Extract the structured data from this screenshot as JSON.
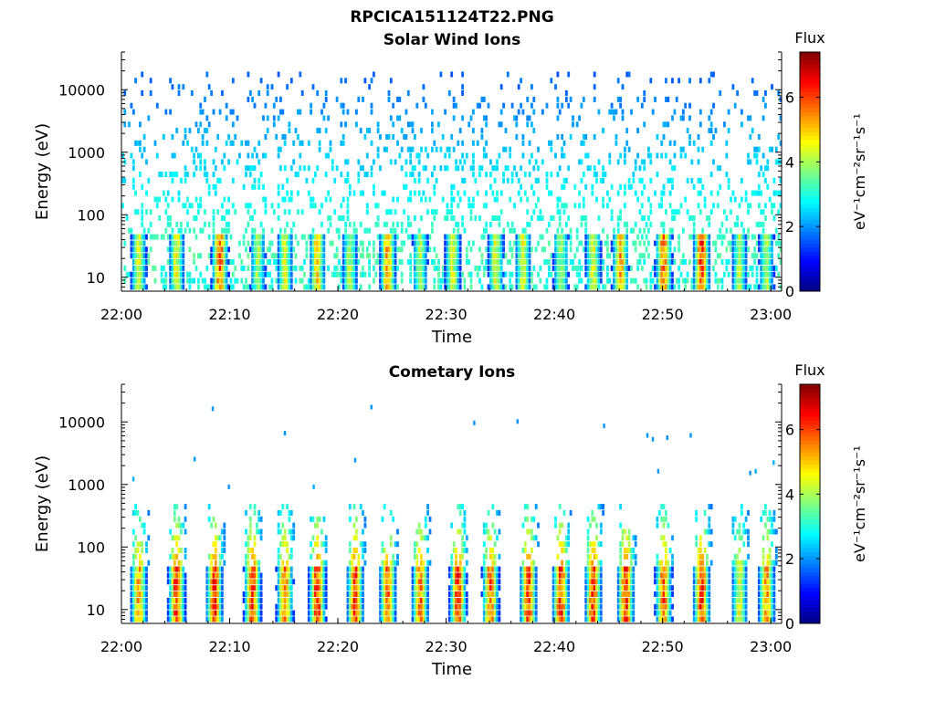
{
  "figure": {
    "title": "RPCICA151124T22.PNG"
  },
  "colorbar": {
    "title": "Flux",
    "label": "eV⁻¹cm⁻²sr⁻¹s⁻¹",
    "ticks": [
      "0",
      "2",
      "4",
      "6"
    ],
    "range": [
      0,
      7.4
    ],
    "colormap": "jet"
  },
  "chart_data": [
    {
      "type": "heatmap",
      "title": "Solar Wind Ions",
      "xlabel": "Time",
      "ylabel": "Energy (eV)",
      "x_ticks": [
        "22:00",
        "22:10",
        "22:20",
        "22:30",
        "22:40",
        "22:50",
        "23:00"
      ],
      "y_ticks": [
        "10",
        "100",
        "1000",
        "10000"
      ],
      "y_scale": "log",
      "xlim": [
        "22:00",
        "23:01"
      ],
      "ylim": [
        6,
        40000
      ],
      "time_step_s": 12,
      "bursts": [
        {
          "time": "22:01:30",
          "flux": 5.0
        },
        {
          "time": "22:05:00",
          "flux": 5.0
        },
        {
          "time": "22:09:00",
          "flux": 6.5
        },
        {
          "time": "22:12:30",
          "flux": 4.5
        },
        {
          "time": "22:15:00",
          "flux": 5.0
        },
        {
          "time": "22:18:00",
          "flux": 5.5
        },
        {
          "time": "22:21:00",
          "flux": 4.5
        },
        {
          "time": "22:24:30",
          "flux": 6.0
        },
        {
          "time": "22:27:30",
          "flux": 4.5
        },
        {
          "time": "22:30:30",
          "flux": 5.0
        },
        {
          "time": "22:34:30",
          "flux": 5.0
        },
        {
          "time": "22:37:00",
          "flux": 5.0
        },
        {
          "time": "22:40:30",
          "flux": 4.5
        },
        {
          "time": "22:43:30",
          "flux": 5.0
        },
        {
          "time": "22:46:00",
          "flux": 6.0
        },
        {
          "time": "22:50:00",
          "flux": 6.5
        },
        {
          "time": "22:53:30",
          "flux": 7.0
        },
        {
          "time": "22:57:00",
          "flux": 4.5
        },
        {
          "time": "22:59:30",
          "flux": 4.5
        }
      ],
      "background": {
        "energy_min": 20,
        "energy_max": 20000,
        "flux_min": 1.6,
        "flux_max": 3.4
      }
    },
    {
      "type": "heatmap",
      "title": "Cometary Ions",
      "xlabel": "Time",
      "ylabel": "Energy (eV)",
      "x_ticks": [
        "22:00",
        "22:10",
        "22:20",
        "22:30",
        "22:40",
        "22:50",
        "23:00"
      ],
      "y_ticks": [
        "10",
        "100",
        "1000",
        "10000"
      ],
      "y_scale": "log",
      "xlim": [
        "22:00",
        "23:01"
      ],
      "ylim": [
        6,
        40000
      ],
      "time_step_s": 12,
      "bursts": [
        {
          "time": "22:01:30",
          "flux": 6.0
        },
        {
          "time": "22:05:00",
          "flux": 7.0
        },
        {
          "time": "22:08:30",
          "flux": 7.0
        },
        {
          "time": "22:12:00",
          "flux": 7.0
        },
        {
          "time": "22:15:00",
          "flux": 6.5
        },
        {
          "time": "22:18:00",
          "flux": 7.0
        },
        {
          "time": "22:21:30",
          "flux": 7.0
        },
        {
          "time": "22:24:30",
          "flux": 6.5
        },
        {
          "time": "22:27:30",
          "flux": 6.5
        },
        {
          "time": "22:31:00",
          "flux": 7.0
        },
        {
          "time": "22:34:00",
          "flux": 6.5
        },
        {
          "time": "22:37:30",
          "flux": 7.0
        },
        {
          "time": "22:40:30",
          "flux": 7.0
        },
        {
          "time": "22:43:30",
          "flux": 7.0
        },
        {
          "time": "22:46:30",
          "flux": 7.0
        },
        {
          "time": "22:50:00",
          "flux": 6.5
        },
        {
          "time": "22:53:30",
          "flux": 7.0
        },
        {
          "time": "22:57:00",
          "flux": 5.0
        },
        {
          "time": "22:59:30",
          "flux": 6.0
        }
      ],
      "sparse_points": [
        {
          "time": "22:01:00",
          "energy": 1200,
          "flux": 2.2
        },
        {
          "time": "22:06:40",
          "energy": 2500,
          "flux": 2.0
        },
        {
          "time": "22:08:20",
          "energy": 16000,
          "flux": 2.0
        },
        {
          "time": "22:09:50",
          "energy": 900,
          "flux": 2.0
        },
        {
          "time": "22:15:00",
          "energy": 6500,
          "flux": 2.0
        },
        {
          "time": "22:17:40",
          "energy": 900,
          "flux": 2.2
        },
        {
          "time": "22:21:30",
          "energy": 2400,
          "flux": 2.0
        },
        {
          "time": "22:23:00",
          "energy": 17000,
          "flux": 2.0
        },
        {
          "time": "22:32:30",
          "energy": 9500,
          "flux": 2.0
        },
        {
          "time": "22:36:30",
          "energy": 10000,
          "flux": 2.0
        },
        {
          "time": "22:44:30",
          "energy": 8500,
          "flux": 2.0
        },
        {
          "time": "22:48:30",
          "energy": 6000,
          "flux": 2.0
        },
        {
          "time": "22:49:00",
          "energy": 5200,
          "flux": 2.0
        },
        {
          "time": "22:49:30",
          "energy": 1600,
          "flux": 2.0
        },
        {
          "time": "22:50:20",
          "energy": 5500,
          "flux": 2.0
        },
        {
          "time": "22:52:30",
          "energy": 6000,
          "flux": 2.0
        },
        {
          "time": "22:58:00",
          "energy": 1500,
          "flux": 2.0
        },
        {
          "time": "22:58:30",
          "energy": 1600,
          "flux": 2.2
        },
        {
          "time": "23:00:10",
          "energy": 2200,
          "flux": 2.2
        }
      ]
    }
  ]
}
